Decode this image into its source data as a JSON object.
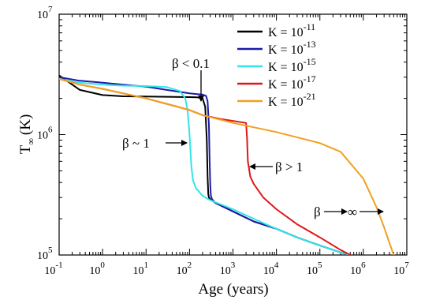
{
  "chart_data": {
    "type": "line",
    "title": "",
    "xlabel": "Age (years)",
    "ylabel_main": "T",
    "ylabel_sub": "∞",
    "ylabel_unit": "(K)",
    "xscale": "log",
    "yscale": "log",
    "xlim": [
      0.1,
      10000000
    ],
    "ylim": [
      100000,
      10000000
    ],
    "legend_position": "top-right",
    "x_ticks": [
      {
        "base": "10",
        "exp": "-1"
      },
      {
        "base": "10",
        "exp": "0"
      },
      {
        "base": "10",
        "exp": "1"
      },
      {
        "base": "10",
        "exp": "2"
      },
      {
        "base": "10",
        "exp": "3"
      },
      {
        "base": "10",
        "exp": "4"
      },
      {
        "base": "10",
        "exp": "5"
      },
      {
        "base": "10",
        "exp": "6"
      },
      {
        "base": "10",
        "exp": "7"
      }
    ],
    "y_ticks": [
      {
        "base": "10",
        "exp": "5"
      },
      {
        "base": "10",
        "exp": "6"
      },
      {
        "base": "10",
        "exp": "7"
      }
    ],
    "series": [
      {
        "name": "K = 10",
        "exp": "-11",
        "color": "#000000",
        "x": [
          0.1,
          0.15,
          0.3,
          1,
          3,
          10,
          30,
          100,
          150,
          200,
          230,
          250,
          260,
          270,
          280,
          300,
          400,
          1000,
          3000,
          10000,
          30000,
          100000,
          300000,
          500000
        ],
        "y": [
          3100000,
          2800000,
          2350000,
          2130000,
          2080000,
          2070000,
          2060000,
          2050000,
          2040000,
          2000000,
          1700000,
          900000,
          450000,
          320000,
          300000,
          290000,
          270000,
          230000,
          190000,
          165000,
          140000,
          120000,
          105000,
          100000
        ]
      },
      {
        "name": "K = 10",
        "exp": "-13",
        "color": "#1b1ba8",
        "x": [
          0.1,
          0.3,
          1,
          3,
          10,
          30,
          100,
          150,
          200,
          240,
          260,
          280,
          290,
          300,
          310,
          330,
          400,
          1000,
          3000,
          10000,
          30000,
          100000,
          300000,
          500000
        ],
        "y": [
          3000000,
          2800000,
          2700000,
          2600000,
          2500000,
          2350000,
          2200000,
          2170000,
          2150000,
          2100000,
          1900000,
          1200000,
          600000,
          380000,
          310000,
          290000,
          270000,
          230000,
          190000,
          165000,
          140000,
          120000,
          105000,
          100000
        ]
      },
      {
        "name": "K = 10",
        "exp": "-15",
        "color": "#33e5e5",
        "x": [
          0.1,
          0.3,
          1,
          3,
          10,
          30,
          60,
          80,
          90,
          100,
          110,
          120,
          140,
          200,
          300,
          1000,
          3000,
          10000,
          30000,
          100000,
          300000,
          500000
        ],
        "y": [
          2900000,
          2700000,
          2600000,
          2550000,
          2530000,
          2480000,
          2300000,
          2000000,
          1600000,
          1000000,
          550000,
          420000,
          360000,
          310000,
          285000,
          240000,
          200000,
          165000,
          140000,
          120000,
          105000,
          100000
        ]
      },
      {
        "name": "K = 10",
        "exp": "-17",
        "color": "#e01717",
        "x": [
          0.1,
          0.3,
          1,
          3,
          10,
          30,
          100,
          200,
          500,
          1000,
          1500,
          2000,
          2100,
          2200,
          2500,
          3000,
          5000,
          10000,
          30000,
          100000,
          300000,
          500000
        ],
        "y": [
          2900000,
          2600000,
          2400000,
          2200000,
          2000000,
          1800000,
          1600000,
          1450000,
          1350000,
          1300000,
          1270000,
          1250000,
          950000,
          600000,
          450000,
          390000,
          300000,
          240000,
          180000,
          140000,
          110000,
          100000
        ]
      },
      {
        "name": "K = 10",
        "exp": "-21",
        "color": "#f0a020",
        "x": [
          0.1,
          0.3,
          1,
          3,
          10,
          30,
          100,
          200,
          1000,
          10000,
          100000,
          300000,
          1000000,
          2000000,
          3000000,
          4000000,
          5000000
        ],
        "y": [
          2900000,
          2600000,
          2400000,
          2200000,
          2000000,
          1800000,
          1600000,
          1450000,
          1250000,
          1050000,
          850000,
          720000,
          430000,
          250000,
          170000,
          125000,
          100000
        ]
      }
    ],
    "annotations": [
      {
        "text": "β < 0.1"
      },
      {
        "text": "β ~ 1"
      },
      {
        "text": "β > 1"
      },
      {
        "text": "β"
      }
    ]
  }
}
